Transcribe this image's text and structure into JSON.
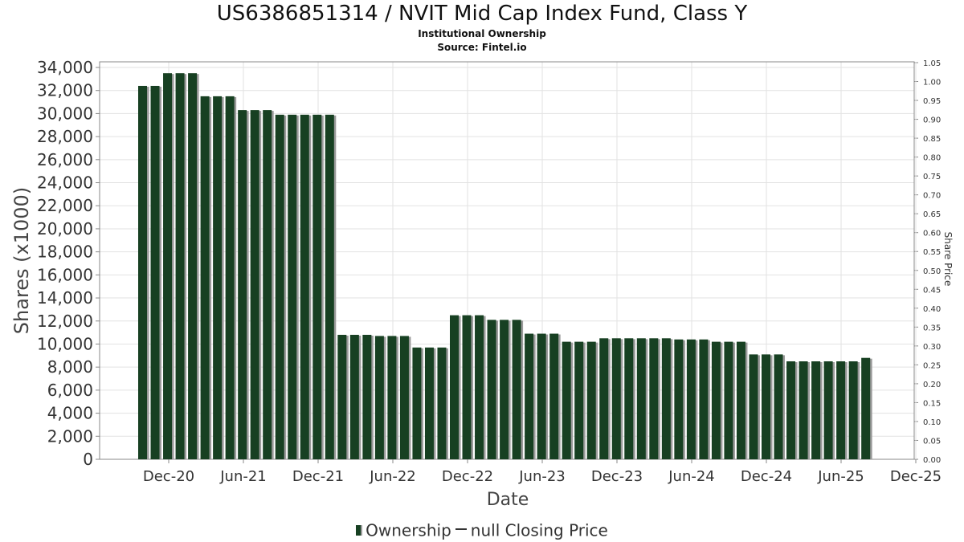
{
  "header": {
    "title": "US6386851314 / NVIT Mid Cap Index Fund, Class Y",
    "subtitle": "Institutional Ownership",
    "source": "Source: Fintel.io"
  },
  "legend": {
    "ownership": "Ownership",
    "price": "null Closing Price"
  },
  "colors": {
    "bar": "#174022",
    "bar_shadow": "#9a9a9a",
    "grid": "#e2e2e2",
    "axis": "#888888"
  },
  "chart_data": {
    "type": "bar",
    "title": "US6386851314 / NVIT Mid Cap Index Fund, Class Y",
    "subtitle": "Institutional Ownership",
    "xlabel": "Date",
    "ylabel": "Shares (x1000)",
    "y2label": "Share Price",
    "ylim": [
      0,
      34000
    ],
    "y2lim": [
      0,
      1.05
    ],
    "yticks": [
      "0",
      "2,000",
      "4,000",
      "6,000",
      "8,000",
      "10,000",
      "12,000",
      "14,000",
      "16,000",
      "18,000",
      "20,000",
      "22,000",
      "24,000",
      "26,000",
      "28,000",
      "30,000",
      "32,000",
      "34,000"
    ],
    "y2ticks": [
      "0.00",
      "0.05",
      "0.10",
      "0.15",
      "0.20",
      "0.25",
      "0.30",
      "0.35",
      "0.40",
      "0.45",
      "0.50",
      "0.55",
      "0.60",
      "0.65",
      "0.70",
      "0.75",
      "0.80",
      "0.85",
      "0.90",
      "0.95",
      "1.00",
      "1.05"
    ],
    "xticks": [
      "Dec-20",
      "Jun-21",
      "Dec-21",
      "Jun-22",
      "Dec-22",
      "Jun-23",
      "Dec-23",
      "Jun-24",
      "Dec-24",
      "Jun-25",
      "Dec-25"
    ],
    "grid": true,
    "legend_position": "bottom",
    "series": [
      {
        "name": "Ownership",
        "values": [
          32400,
          32400,
          33500,
          33500,
          33500,
          31500,
          31500,
          31500,
          30300,
          30300,
          30300,
          29900,
          29900,
          29900,
          29900,
          29900,
          10800,
          10800,
          10800,
          10700,
          10700,
          10700,
          9700,
          9700,
          9700,
          12500,
          12500,
          12500,
          12100,
          12100,
          12100,
          10900,
          10900,
          10900,
          10200,
          10200,
          10200,
          10500,
          10500,
          10500,
          10500,
          10500,
          10500,
          10400,
          10400,
          10400,
          10200,
          10200,
          10200,
          9100,
          9100,
          9100,
          8500,
          8500,
          8500,
          8500,
          8500,
          8500,
          8800
        ]
      },
      {
        "name": "null Closing Price",
        "values": []
      }
    ]
  }
}
